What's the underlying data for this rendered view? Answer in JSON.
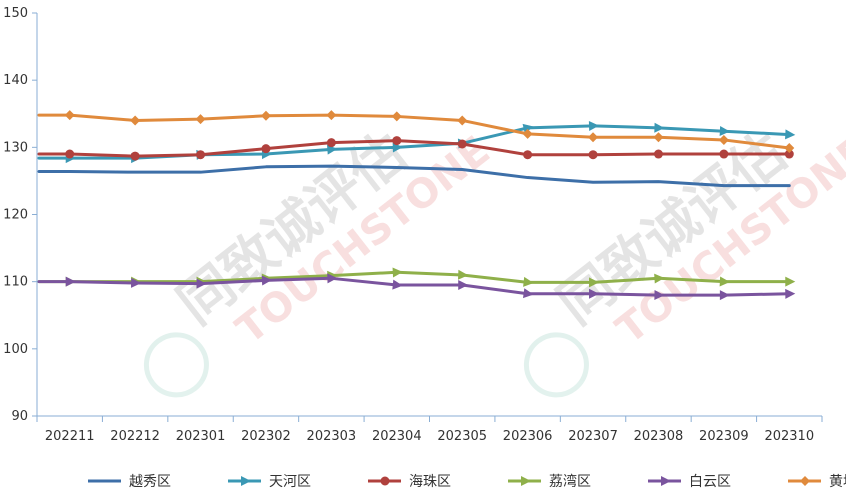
{
  "chart_data": {
    "type": "line",
    "title": "",
    "xlabel": "",
    "ylabel": "",
    "categories": [
      "202211",
      "202212",
      "202301",
      "202302",
      "202303",
      "202304",
      "202305",
      "202306",
      "202307",
      "202308",
      "202309",
      "202310"
    ],
    "ylim": [
      90,
      150
    ],
    "yticks": [
      90,
      100,
      110,
      120,
      130,
      140,
      150
    ],
    "grid": false,
    "legend_position": "bottom",
    "series": [
      {
        "name": "越秀区",
        "color": "#3d6fa8",
        "marker": "none",
        "values": [
          126.4,
          126.3,
          126.3,
          127.1,
          127.2,
          127.0,
          126.7,
          125.5,
          124.8,
          124.9,
          124.3,
          124.3
        ]
      },
      {
        "name": "天河区",
        "color": "#3a98b4",
        "marker": "arrow",
        "values": [
          128.4,
          128.4,
          128.9,
          129.0,
          129.7,
          130.0,
          130.6,
          132.9,
          133.2,
          132.9,
          132.4,
          131.9
        ]
      },
      {
        "name": "海珠区",
        "color": "#b0413d",
        "marker": "circle",
        "values": [
          129.0,
          128.7,
          128.9,
          129.8,
          130.7,
          131.0,
          130.5,
          128.9,
          128.9,
          129.0,
          129.0,
          129.0
        ]
      },
      {
        "name": "荔湾区",
        "color": "#8fb04a",
        "marker": "arrow",
        "values": [
          110.0,
          110.0,
          110.0,
          110.5,
          110.9,
          111.4,
          111.0,
          109.9,
          109.9,
          110.5,
          110.0,
          110.0
        ]
      },
      {
        "name": "白云区",
        "color": "#7a549e",
        "marker": "arrow",
        "values": [
          110.0,
          109.8,
          109.7,
          110.2,
          110.5,
          109.5,
          109.5,
          108.2,
          108.2,
          108.0,
          108.0,
          108.2
        ]
      },
      {
        "name": "黄埔区",
        "color": "#e08a3c",
        "marker": "diamond",
        "values": [
          134.8,
          134.0,
          134.2,
          134.7,
          134.8,
          134.6,
          134.0,
          132.0,
          131.5,
          131.5,
          131.1,
          129.9
        ]
      }
    ],
    "watermark": {
      "cn": "同致诚评估",
      "en": "TOUCHSTONE"
    }
  }
}
